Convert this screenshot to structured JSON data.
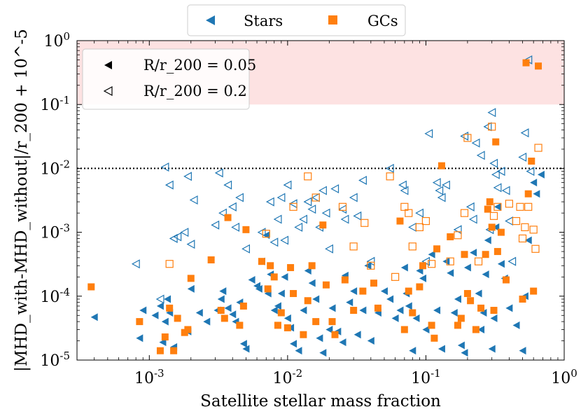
{
  "chart_data": {
    "type": "scatter",
    "title": "",
    "xlabel": "Satellite stellar mass fraction",
    "ylabel": "|MHD_with-MHD_without|/r_200 + 10^-5",
    "xscale": "log",
    "yscale": "log",
    "xlim": [
      0.0003,
      1
    ],
    "ylim": [
      1e-05,
      1
    ],
    "x_ticks": [
      {
        "value": 0.001,
        "label": "10^-3"
      },
      {
        "value": 0.01,
        "label": "10^-2"
      },
      {
        "value": 0.1,
        "label": "10^-1"
      },
      {
        "value": 1,
        "label": "10^0"
      }
    ],
    "y_ticks": [
      {
        "value": 1e-05,
        "label": "10^-5"
      },
      {
        "value": 0.0001,
        "label": "10^-4"
      },
      {
        "value": 0.001,
        "label": "10^-3"
      },
      {
        "value": 0.01,
        "label": "10^-2"
      },
      {
        "value": 0.1,
        "label": "10^-1"
      },
      {
        "value": 1,
        "label": "10^0"
      }
    ],
    "shaded_region": {
      "ymin": 0.1,
      "ymax": 1,
      "color": "#fde2e2"
    },
    "reference_line": {
      "y": 0.01,
      "style": "dotted",
      "color": "#000000"
    },
    "colors": {
      "stars": "#1f77b4",
      "gcs": "#ff7f0e"
    },
    "legend_top": [
      {
        "label": "Stars",
        "marker": "triangle-left",
        "color": "#1f77b4"
      },
      {
        "label": "GCs",
        "marker": "square",
        "color": "#ff7f0e"
      }
    ],
    "legend_inner": [
      {
        "label": "R/r_200 = 0.05",
        "marker": "triangle-left-filled",
        "color": "#000000"
      },
      {
        "label": "R/r_200 = 0.2",
        "marker": "triangle-left-open",
        "color": "#000000"
      }
    ],
    "series": [
      {
        "name": "Stars R/r200=0.05",
        "marker": "triangle-left",
        "filled": true,
        "color": "#1f77b4",
        "points": [
          [
            0.0004,
            4.7e-05
          ],
          [
            0.00085,
            2.2e-05
          ],
          [
            0.0009,
            6e-05
          ],
          [
            0.0011,
            5e-05
          ],
          [
            0.0012,
            7e-05
          ],
          [
            0.00125,
            1.9e-05
          ],
          [
            0.0013,
            4e-05
          ],
          [
            0.00135,
            9e-05
          ],
          [
            0.0014,
            5.5e-05
          ],
          [
            0.0015,
            1.6e-05
          ],
          [
            0.0019,
            2.8e-05
          ],
          [
            0.002,
            0.00013
          ],
          [
            0.0023,
            5.5e-05
          ],
          [
            0.0026,
            4e-05
          ],
          [
            0.0031,
            6e-05
          ],
          [
            0.0033,
            9e-05
          ],
          [
            0.0034,
            0.00012
          ],
          [
            0.0037,
            6.5e-05
          ],
          [
            0.004,
            5.2e-05
          ],
          [
            0.0042,
            4e-05
          ],
          [
            0.0045,
            8e-05
          ],
          [
            0.0048,
            1.8e-05
          ],
          [
            0.005,
            1.5e-05
          ],
          [
            0.0055,
            0.00018
          ],
          [
            0.006,
            0.000145
          ],
          [
            0.0062,
            0.00013
          ],
          [
            0.0065,
            0.00035
          ],
          [
            0.007,
            0.0009
          ],
          [
            0.0072,
            0.00011
          ],
          [
            0.0075,
            0.00022
          ],
          [
            0.008,
            6e-05
          ],
          [
            0.0085,
            7e-05
          ],
          [
            0.009,
            0.00011
          ],
          [
            0.0095,
            0.0002
          ],
          [
            0.01,
            4.5e-05
          ],
          [
            0.0105,
            3.2e-05
          ],
          [
            0.011,
            1.8e-05
          ],
          [
            0.012,
            1.4e-05
          ],
          [
            0.013,
            6e-05
          ],
          [
            0.014,
            0.00025
          ],
          [
            0.015,
            0.00016
          ],
          [
            0.016,
            9e-05
          ],
          [
            0.017,
            2.2e-05
          ],
          [
            0.018,
            1.3e-05
          ],
          [
            0.02,
            3e-05
          ],
          [
            0.021,
            6.5e-05
          ],
          [
            0.023,
            2.8e-05
          ],
          [
            0.025,
            1.9e-05
          ],
          [
            0.026,
            0.00021
          ],
          [
            0.028,
            8e-05
          ],
          [
            0.03,
            0.00012
          ],
          [
            0.032,
            2.5e-05
          ],
          [
            0.035,
            6e-05
          ],
          [
            0.038,
            0.0003
          ],
          [
            0.04,
            2e-05
          ],
          [
            0.045,
            5.5e-05
          ],
          [
            0.05,
            0.00012
          ],
          [
            0.055,
            9e-05
          ],
          [
            0.06,
            4.5e-05
          ],
          [
            0.065,
            6e-05
          ],
          [
            0.07,
            0.00028
          ],
          [
            0.072,
            0.00011
          ],
          [
            0.075,
            7e-05
          ],
          [
            0.08,
            1.4e-05
          ],
          [
            0.085,
            4.5e-05
          ],
          [
            0.09,
            0.00025
          ],
          [
            0.095,
            0.00019
          ],
          [
            0.1,
            3e-05
          ],
          [
            0.11,
            0.00045
          ],
          [
            0.12,
            6e-05
          ],
          [
            0.13,
            1.5e-05
          ],
          [
            0.14,
            0.00035
          ],
          [
            0.15,
            0.00023
          ],
          [
            0.16,
            5.5e-05
          ],
          [
            0.17,
            9e-05
          ],
          [
            0.18,
            1.7e-05
          ],
          [
            0.19,
            1.3e-05
          ],
          [
            0.2,
            0.00028
          ],
          [
            0.22,
            0.00048
          ],
          [
            0.24,
            0.00011
          ],
          [
            0.25,
            3e-05
          ],
          [
            0.26,
            5.5e-05
          ],
          [
            0.27,
            0.00022
          ],
          [
            0.28,
            0.00075
          ],
          [
            0.3,
            1.5e-05
          ],
          [
            0.31,
            4.5e-05
          ],
          [
            0.32,
            0.0012
          ],
          [
            0.33,
            0.0025
          ],
          [
            0.35,
            0.00032
          ],
          [
            0.37,
            0.00019
          ],
          [
            0.4,
            6.5e-05
          ],
          [
            0.45,
            3.5e-05
          ],
          [
            0.5,
            1.4e-05
          ],
          [
            0.52,
            0.0001
          ],
          [
            0.55,
            0.00075
          ],
          [
            0.6,
            0.006
          ],
          [
            0.63,
            0.004
          ],
          [
            0.68,
            0.008
          ]
        ]
      },
      {
        "name": "Stars R/r200=0.2",
        "marker": "triangle-left",
        "filled": false,
        "color": "#1f77b4",
        "points": [
          [
            0.0008,
            0.00032
          ],
          [
            0.0012,
            9e-05
          ],
          [
            0.0013,
            0.0105
          ],
          [
            0.0014,
            0.0055
          ],
          [
            0.0015,
            0.0008
          ],
          [
            0.0016,
            0.00085
          ],
          [
            0.0018,
            0.001
          ],
          [
            0.0019,
            0.0075
          ],
          [
            0.002,
            0.00065
          ],
          [
            0.0021,
            0.0032
          ],
          [
            0.003,
            0.0013
          ],
          [
            0.0032,
            0.0085
          ],
          [
            0.0034,
            0.002
          ],
          [
            0.0037,
            0.0055
          ],
          [
            0.004,
            0.0025
          ],
          [
            0.0042,
            0.0012
          ],
          [
            0.0045,
            0.0035
          ],
          [
            0.005,
            0.00055
          ],
          [
            0.0065,
            0.001
          ],
          [
            0.0075,
            0.003
          ],
          [
            0.008,
            0.0007
          ],
          [
            0.0085,
            0.0016
          ],
          [
            0.009,
            0.0035
          ],
          [
            0.0095,
            0.00075
          ],
          [
            0.01,
            0.0055
          ],
          [
            0.011,
            0.0028
          ],
          [
            0.012,
            0.0012
          ],
          [
            0.013,
            0.0016
          ],
          [
            0.014,
            0.003
          ],
          [
            0.015,
            0.0023
          ],
          [
            0.016,
            0.0035
          ],
          [
            0.017,
            0.0012
          ],
          [
            0.018,
            0.0045
          ],
          [
            0.019,
            0.002
          ],
          [
            0.02,
            0.00055
          ],
          [
            0.022,
            0.0048
          ],
          [
            0.025,
            0.0023
          ],
          [
            0.026,
            0.0016
          ],
          [
            0.03,
            0.0035
          ],
          [
            0.032,
            0.0018
          ],
          [
            0.035,
            0.0065
          ],
          [
            0.04,
            0.00035
          ],
          [
            0.055,
            0.01
          ],
          [
            0.068,
            0.0055
          ],
          [
            0.07,
            0.0045
          ],
          [
            0.08,
            0.0012
          ],
          [
            0.09,
            0.002
          ],
          [
            0.1,
            0.00035
          ],
          [
            0.105,
            0.035
          ],
          [
            0.12,
            0.006
          ],
          [
            0.125,
            0.0045
          ],
          [
            0.13,
            0.0035
          ],
          [
            0.14,
            0.0055
          ],
          [
            0.17,
            0.0011
          ],
          [
            0.19,
            0.032
          ],
          [
            0.21,
            0.0025
          ],
          [
            0.22,
            0.0016
          ],
          [
            0.23,
            0.025
          ],
          [
            0.25,
            0.016
          ],
          [
            0.28,
            0.045
          ],
          [
            0.29,
            0.0011
          ],
          [
            0.3,
            0.075
          ],
          [
            0.31,
            0.012
          ],
          [
            0.32,
            0.008
          ],
          [
            0.33,
            0.005
          ],
          [
            0.35,
            0.009
          ],
          [
            0.38,
            0.0045
          ],
          [
            0.4,
            0.0015
          ],
          [
            0.42,
            0.00035
          ],
          [
            0.5,
            0.015
          ],
          [
            0.52,
            0.036
          ],
          [
            0.55,
            0.5
          ],
          [
            0.57,
            0.009
          ]
        ]
      },
      {
        "name": "GCs R/r200=0.05",
        "marker": "square",
        "filled": true,
        "color": "#ff7f0e",
        "points": [
          [
            0.00038,
            0.00014
          ],
          [
            0.00085,
            4e-05
          ],
          [
            0.0012,
            1.4e-05
          ],
          [
            0.0013,
            2.3e-05
          ],
          [
            0.0014,
            6.5e-05
          ],
          [
            0.0015,
            1.4e-05
          ],
          [
            0.0016,
            4.5e-05
          ],
          [
            0.0018,
            2.7e-05
          ],
          [
            0.0019,
            3e-05
          ],
          [
            0.002,
            0.00019
          ],
          [
            0.0028,
            0.00037
          ],
          [
            0.0033,
            6e-05
          ],
          [
            0.0035,
            4.5e-05
          ],
          [
            0.0037,
            0.0017
          ],
          [
            0.0045,
            3.5e-05
          ],
          [
            0.0048,
            7e-05
          ],
          [
            0.005,
            0.0011
          ],
          [
            0.0065,
            0.00035
          ],
          [
            0.0072,
            0.00013
          ],
          [
            0.0075,
            0.0003
          ],
          [
            0.008,
            0.0002
          ],
          [
            0.0085,
            3.5e-05
          ],
          [
            0.009,
            5.5e-05
          ],
          [
            0.01,
            3.2e-05
          ],
          [
            0.0105,
            0.00028
          ],
          [
            0.011,
            0.00011
          ],
          [
            0.013,
            2.5e-05
          ],
          [
            0.014,
            8.5e-05
          ],
          [
            0.015,
            0.0003
          ],
          [
            0.016,
            4e-05
          ],
          [
            0.018,
            0.0013
          ],
          [
            0.019,
            0.00015
          ],
          [
            0.021,
            4e-05
          ],
          [
            0.022,
            2.5e-05
          ],
          [
            0.026,
            0.00018
          ],
          [
            0.03,
            6e-05
          ],
          [
            0.035,
            0.00012
          ],
          [
            0.042,
            0.00016
          ],
          [
            0.045,
            6.5e-05
          ],
          [
            0.065,
            0.0015
          ],
          [
            0.07,
            3e-05
          ],
          [
            0.075,
            0.00012
          ],
          [
            0.08,
            5.5e-05
          ],
          [
            0.09,
            0.00014
          ],
          [
            0.095,
            0.0003
          ],
          [
            0.11,
            3.5e-05
          ],
          [
            0.115,
            2.2e-05
          ],
          [
            0.12,
            0.00055
          ],
          [
            0.13,
            0.011
          ],
          [
            0.15,
            0.00085
          ],
          [
            0.17,
            3.5e-05
          ],
          [
            0.18,
            4.5e-05
          ],
          [
            0.19,
            0.00045
          ],
          [
            0.2,
            0.00011
          ],
          [
            0.21,
            8.5e-05
          ],
          [
            0.23,
            3e-05
          ],
          [
            0.25,
            6.5e-05
          ],
          [
            0.27,
            0.00045
          ],
          [
            0.28,
            0.0023
          ],
          [
            0.29,
            0.003
          ],
          [
            0.3,
            0.0012
          ],
          [
            0.31,
            6e-05
          ],
          [
            0.32,
            0.026
          ],
          [
            0.33,
            0.0005
          ],
          [
            0.35,
            0.001
          ],
          [
            0.38,
            0.00018
          ],
          [
            0.5,
            9e-05
          ],
          [
            0.53,
            0.45
          ],
          [
            0.55,
            0.004
          ],
          [
            0.58,
            0.013
          ],
          [
            0.6,
            0.00012
          ],
          [
            0.65,
            0.4
          ]
        ]
      },
      {
        "name": "GCs R/r200=0.2",
        "marker": "square",
        "filled": false,
        "color": "#ff7f0e",
        "points": [
          [
            0.0014,
            0.00032
          ],
          [
            0.007,
            0.00095
          ],
          [
            0.011,
            0.0025
          ],
          [
            0.014,
            0.0075
          ],
          [
            0.016,
            0.0035
          ],
          [
            0.025,
            0.0025
          ],
          [
            0.03,
            0.0006
          ],
          [
            0.036,
            0.0014
          ],
          [
            0.04,
            0.0003
          ],
          [
            0.055,
            0.0075
          ],
          [
            0.06,
            0.0002
          ],
          [
            0.07,
            0.0025
          ],
          [
            0.075,
            0.002
          ],
          [
            0.08,
            0.0006
          ],
          [
            0.09,
            0.0012
          ],
          [
            0.1,
            0.0015
          ],
          [
            0.11,
            0.00032
          ],
          [
            0.15,
            0.00035
          ],
          [
            0.17,
            0.0009
          ],
          [
            0.19,
            0.002
          ],
          [
            0.2,
            0.03
          ],
          [
            0.24,
            0.00035
          ],
          [
            0.3,
            0.045
          ],
          [
            0.31,
            0.0018
          ],
          [
            0.33,
            0.0025
          ],
          [
            0.4,
            0.0028
          ],
          [
            0.45,
            0.0015
          ],
          [
            0.48,
            0.0025
          ],
          [
            0.5,
            0.0008
          ],
          [
            0.52,
            0.0012
          ],
          [
            0.55,
            0.0025
          ],
          [
            0.6,
            0.0011
          ],
          [
            0.62,
            0.00055
          ],
          [
            0.65,
            0.021
          ]
        ]
      }
    ]
  }
}
